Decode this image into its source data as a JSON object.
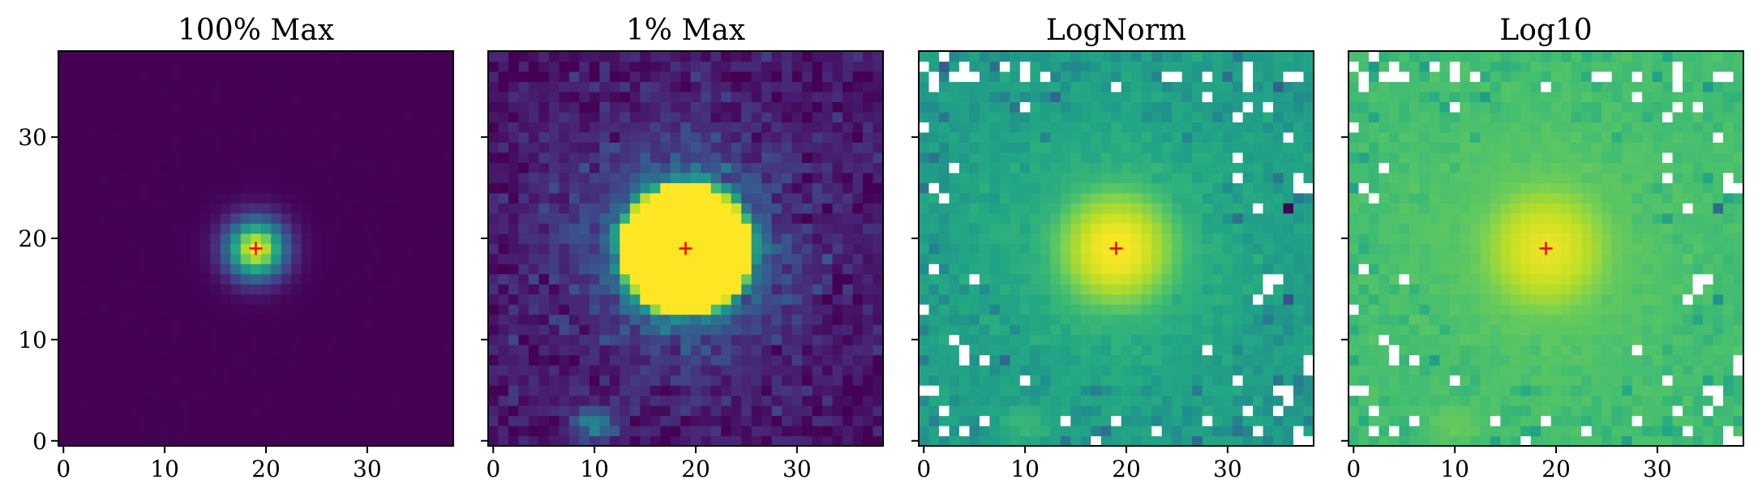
{
  "figure": {
    "background": "#ffffff"
  },
  "chart_data": [
    {
      "type": "heatmap",
      "title": "100% Max",
      "scale": "linear",
      "vmax_fraction": 1.0,
      "colormap": "viridis",
      "xlim": [
        -0.5,
        38.5
      ],
      "ylim": [
        -0.5,
        38.5
      ],
      "xticks": [
        0,
        10,
        20,
        30
      ],
      "yticks": [
        0,
        10,
        20,
        30
      ],
      "show_ytick_labels": true,
      "grid": false,
      "marker": {
        "symbol": "+",
        "x": 19,
        "y": 19,
        "color": "#ff0000"
      },
      "sources": [
        {
          "x": 19,
          "y": 19,
          "peak": 1.0,
          "sigma": 2.0
        },
        {
          "x": 10,
          "y": 1.5,
          "peak": 0.004,
          "sigma": 1.3
        }
      ],
      "background_level": 0.0006
    },
    {
      "type": "heatmap",
      "title": "1% Max",
      "scale": "linear",
      "vmax_fraction": 0.01,
      "colormap": "viridis",
      "xlim": [
        -0.5,
        38.5
      ],
      "ylim": [
        -0.5,
        38.5
      ],
      "xticks": [
        0,
        10,
        20,
        30
      ],
      "yticks": [
        0,
        10,
        20,
        30
      ],
      "show_ytick_labels": false,
      "grid": false,
      "marker": {
        "symbol": "+",
        "x": 19,
        "y": 19,
        "color": "#ff0000"
      },
      "sources": [
        {
          "x": 19,
          "y": 19,
          "peak": 1.0,
          "sigma": 2.0
        },
        {
          "x": 10,
          "y": 1.5,
          "peak": 0.004,
          "sigma": 1.3
        }
      ],
      "background_level": 0.0006
    },
    {
      "type": "heatmap",
      "title": "LogNorm",
      "scale": "log",
      "colormap": "viridis",
      "xlim": [
        -0.5,
        38.5
      ],
      "ylim": [
        -0.5,
        38.5
      ],
      "xticks": [
        0,
        10,
        20,
        30
      ],
      "yticks": [
        0,
        10,
        20,
        30
      ],
      "show_ytick_labels": false,
      "grid": false,
      "nonpositive_pixels": "blank (white)",
      "marker": {
        "symbol": "+",
        "x": 19,
        "y": 19,
        "color": "#ff0000"
      },
      "sources": [
        {
          "x": 19,
          "y": 19,
          "peak": 1.0,
          "sigma": 2.0
        },
        {
          "x": 10,
          "y": 1.5,
          "peak": 0.004,
          "sigma": 1.3
        }
      ],
      "background_level": 0.0006
    },
    {
      "type": "heatmap",
      "title": "Log10",
      "scale": "log10 of data",
      "colormap": "viridis",
      "xlim": [
        -0.5,
        38.5
      ],
      "ylim": [
        -0.5,
        38.5
      ],
      "xticks": [
        0,
        10,
        20,
        30
      ],
      "yticks": [
        0,
        10,
        20,
        30
      ],
      "show_ytick_labels": false,
      "grid": false,
      "nonpositive_pixels": "blank (white)",
      "marker": {
        "symbol": "+",
        "x": 19,
        "y": 19,
        "color": "#ff0000"
      },
      "sources": [
        {
          "x": 19,
          "y": 19,
          "peak": 1.0,
          "sigma": 2.0
        },
        {
          "x": 10,
          "y": 1.5,
          "peak": 0.004,
          "sigma": 1.3
        }
      ],
      "background_level": 0.0006
    }
  ]
}
